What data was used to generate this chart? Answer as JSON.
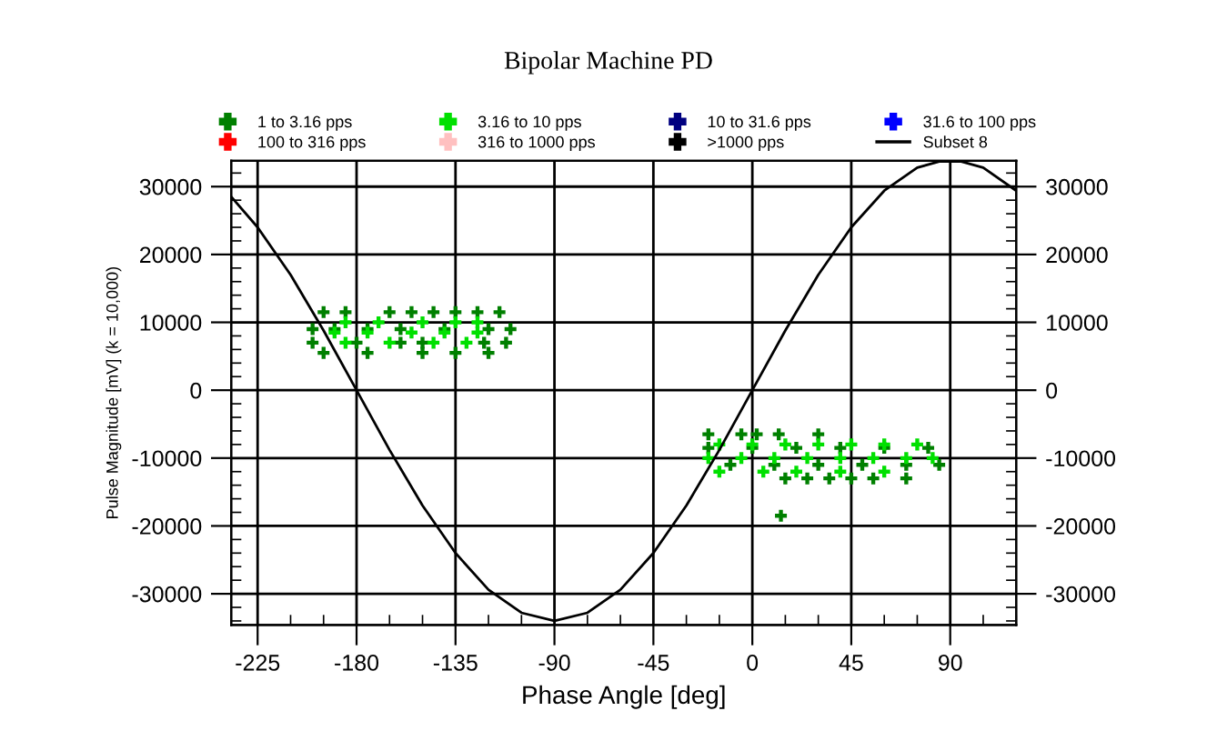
{
  "chart_data": {
    "type": "scatter",
    "title": "Bipolar Machine PD",
    "xlabel": "Phase Angle [deg]",
    "ylabel": "Pulse Magnitude [mV] (k = 10,000)",
    "xlim": [
      -237,
      120
    ],
    "xticks": [
      -225,
      -180,
      -135,
      -90,
      -45,
      0,
      45,
      90
    ],
    "ylim": [
      -34600,
      33800
    ],
    "yticks": [
      -30000,
      -20000,
      -10000,
      0,
      10000,
      20000,
      30000
    ],
    "y2lim": [
      -34600,
      33800
    ],
    "y2ticks": [
      -30000,
      -20000,
      -10000,
      0,
      10000,
      20000,
      30000
    ],
    "grid": true,
    "legend": "top",
    "marker": "cross",
    "series": [
      {
        "name": "1 to 3.16 pps",
        "color": "#008000",
        "x": [
          -195,
          -185,
          -165,
          -155,
          -145,
          -135,
          -125,
          -115,
          -200,
          -190,
          -175,
          -160,
          -140,
          -120,
          -110,
          -200,
          -180,
          -160,
          -150,
          -122,
          -112,
          -195,
          -175,
          -150,
          -135,
          -120,
          -20,
          -5,
          2,
          12,
          30,
          -20,
          0,
          20,
          40,
          60,
          80,
          -10,
          10,
          30,
          50,
          70,
          85,
          15,
          25,
          35,
          45,
          55,
          70,
          13
        ],
        "values": [
          11500,
          11500,
          11500,
          11500,
          11500,
          11500,
          11500,
          11500,
          9000,
          9000,
          9000,
          9000,
          9000,
          9000,
          9000,
          7000,
          7000,
          7000,
          7000,
          7000,
          7000,
          5500,
          5500,
          5500,
          5500,
          5500,
          -6500,
          -6500,
          -6500,
          -6500,
          -6500,
          -8500,
          -8500,
          -8500,
          -8500,
          -8500,
          -8500,
          -11000,
          -11000,
          -11000,
          -11000,
          -11000,
          -11000,
          -13000,
          -13000,
          -13000,
          -13000,
          -13000,
          -13000,
          -18500
        ]
      },
      {
        "name": "3.16 to 10 pps",
        "color": "#00e000",
        "x": [
          -185,
          -170,
          -150,
          -135,
          -125,
          -190,
          -175,
          -155,
          -140,
          -125,
          -185,
          -165,
          -145,
          -130,
          -15,
          0,
          15,
          30,
          45,
          60,
          75,
          -20,
          -5,
          10,
          25,
          40,
          55,
          70,
          82,
          -15,
          5,
          20,
          40,
          60
        ],
        "values": [
          10000,
          10000,
          10000,
          10000,
          10000,
          8500,
          8500,
          8500,
          8500,
          8500,
          7000,
          7000,
          7000,
          7000,
          -8000,
          -8000,
          -8000,
          -8000,
          -8000,
          -8000,
          -8000,
          -10000,
          -10000,
          -10000,
          -10000,
          -10000,
          -10000,
          -10000,
          -10000,
          -12000,
          -12000,
          -12000,
          -12000,
          -12000
        ]
      },
      {
        "name": "10 to 31.6 pps",
        "color": "#000080"
      },
      {
        "name": "31.6 to 100 pps",
        "color": "#0000ff"
      },
      {
        "name": "100 to 316 pps",
        "color": "#ff0000"
      },
      {
        "name": "316 to 1000 pps",
        "color": "#ffc0c0"
      },
      {
        "name": ">1000 pps",
        "color": "#000000"
      },
      {
        "name": "Subset 8",
        "type": "line",
        "marker": "none",
        "color": "#000000",
        "x": [
          -237,
          -225,
          -210,
          -195,
          -180,
          -165,
          -150,
          -135,
          -120,
          -105,
          -90,
          -75,
          -60,
          -45,
          -30,
          -15,
          0,
          15,
          30,
          45,
          60,
          75,
          85,
          95,
          105,
          120
        ],
        "values": [
          28500,
          24000,
          17000,
          8800,
          0,
          -8800,
          -17000,
          -24000,
          -29400,
          -32800,
          -34000,
          -32800,
          -29400,
          -24000,
          -17000,
          -8800,
          0,
          8800,
          17000,
          24000,
          29400,
          32800,
          33700,
          33700,
          32800,
          29400
        ]
      }
    ]
  }
}
